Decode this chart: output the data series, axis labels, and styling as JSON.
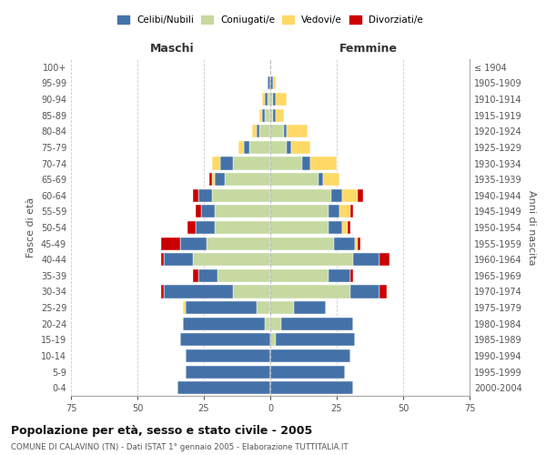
{
  "age_groups": [
    "0-4",
    "5-9",
    "10-14",
    "15-19",
    "20-24",
    "25-29",
    "30-34",
    "35-39",
    "40-44",
    "45-49",
    "50-54",
    "55-59",
    "60-64",
    "65-69",
    "70-74",
    "75-79",
    "80-84",
    "85-89",
    "90-94",
    "95-99",
    "100+"
  ],
  "birth_years": [
    "2000-2004",
    "1995-1999",
    "1990-1994",
    "1985-1989",
    "1980-1984",
    "1975-1979",
    "1970-1974",
    "1965-1969",
    "1960-1964",
    "1955-1959",
    "1950-1954",
    "1945-1949",
    "1940-1944",
    "1935-1939",
    "1930-1934",
    "1925-1929",
    "1920-1924",
    "1915-1919",
    "1910-1914",
    "1905-1909",
    "≤ 1904"
  ],
  "male_celibi": [
    35,
    32,
    32,
    34,
    31,
    27,
    26,
    7,
    11,
    10,
    7,
    5,
    5,
    4,
    5,
    2,
    1,
    1,
    1,
    1,
    0
  ],
  "male_coniugati": [
    0,
    0,
    0,
    0,
    2,
    5,
    14,
    20,
    29,
    24,
    21,
    21,
    22,
    17,
    14,
    8,
    4,
    2,
    1,
    0,
    0
  ],
  "male_vedovi": [
    0,
    0,
    0,
    0,
    0,
    1,
    0,
    0,
    0,
    0,
    0,
    0,
    0,
    1,
    3,
    2,
    2,
    1,
    1,
    0,
    0
  ],
  "male_divorziati": [
    0,
    0,
    0,
    0,
    0,
    0,
    1,
    2,
    1,
    7,
    3,
    2,
    2,
    1,
    0,
    0,
    0,
    0,
    0,
    0,
    0
  ],
  "female_celibi": [
    31,
    28,
    30,
    30,
    27,
    12,
    11,
    8,
    10,
    8,
    5,
    4,
    4,
    2,
    3,
    2,
    1,
    1,
    1,
    1,
    0
  ],
  "female_coniugati": [
    0,
    0,
    0,
    2,
    4,
    9,
    30,
    22,
    31,
    24,
    22,
    22,
    23,
    18,
    12,
    6,
    5,
    1,
    1,
    0,
    0
  ],
  "female_vedovi": [
    0,
    0,
    0,
    0,
    0,
    0,
    0,
    0,
    0,
    1,
    2,
    4,
    6,
    6,
    10,
    7,
    8,
    3,
    4,
    1,
    0
  ],
  "female_divorziati": [
    0,
    0,
    0,
    0,
    0,
    0,
    3,
    1,
    4,
    1,
    1,
    1,
    2,
    0,
    0,
    0,
    0,
    0,
    0,
    0,
    0
  ],
  "color_celibi": "#4472a8",
  "color_coniugati": "#c6d9a0",
  "color_vedovi": "#ffd966",
  "color_divorziati": "#cc0000",
  "title": "Popolazione per età, sesso e stato civile - 2005",
  "subtitle": "COMUNE DI CALAVINO (TN) - Dati ISTAT 1° gennaio 2005 - Elaborazione TUTTITALIA.IT",
  "xlabel_left": "Maschi",
  "xlabel_right": "Femmine",
  "ylabel_left": "Fasce di età",
  "ylabel_right": "Anni di nascita",
  "xlim": 75,
  "bg_color": "#ffffff",
  "grid_color": "#cccccc"
}
